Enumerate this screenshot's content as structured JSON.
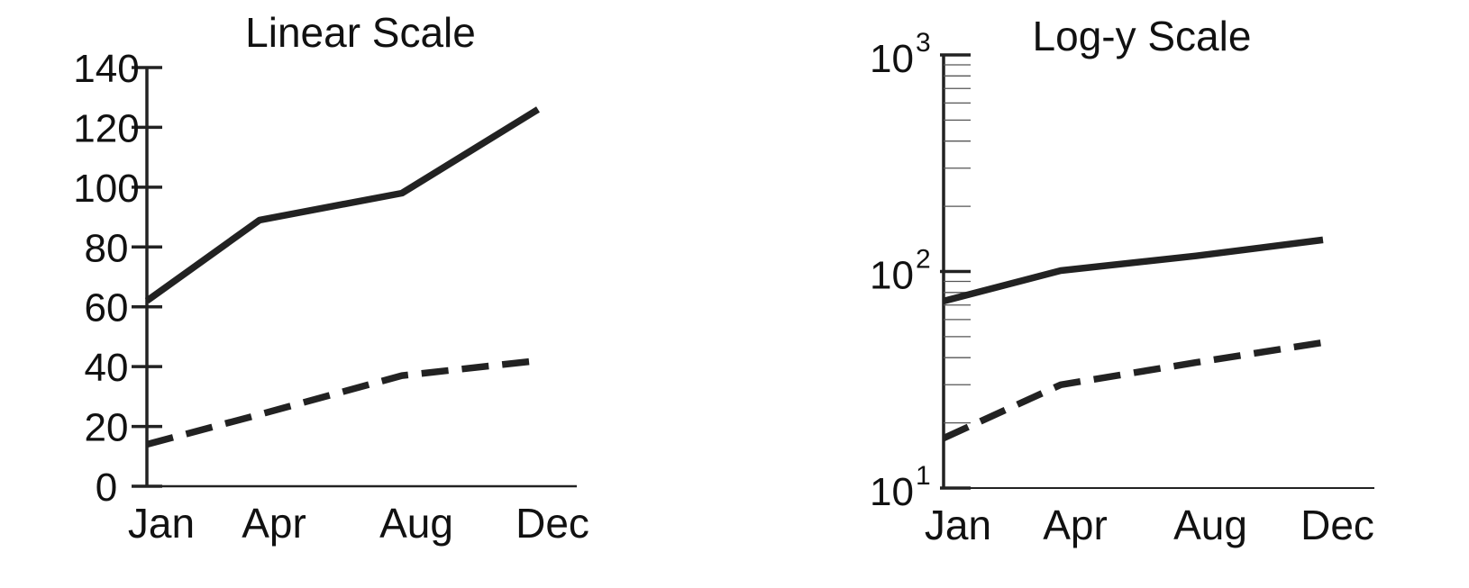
{
  "chart_data": [
    {
      "type": "line",
      "title": "Linear Scale",
      "yscale": "linear",
      "ylim": [
        0,
        140
      ],
      "yticks": [
        0,
        20,
        40,
        60,
        80,
        100,
        120,
        140
      ],
      "ytick_labels": [
        "0",
        "20",
        "40",
        "60",
        "80",
        "100",
        "120",
        "140"
      ],
      "categories": [
        "Jan",
        "Apr",
        "Aug",
        "Dec"
      ],
      "grid": false,
      "series": [
        {
          "style": "solid",
          "values": [
            62,
            89,
            98,
            126
          ]
        },
        {
          "style": "dashed",
          "values": [
            14,
            24,
            37,
            42
          ]
        }
      ]
    },
    {
      "type": "line",
      "title": "Log-y Scale",
      "yscale": "log",
      "ylim": [
        10,
        1000
      ],
      "yticks": [
        10,
        100,
        1000
      ],
      "ytick_labels": [
        {
          "base": "10",
          "exp": "1"
        },
        {
          "base": "10",
          "exp": "2"
        },
        {
          "base": "10",
          "exp": "3"
        }
      ],
      "categories": [
        "Jan",
        "Apr",
        "Aug",
        "Dec"
      ],
      "grid": false,
      "series": [
        {
          "style": "solid",
          "values": [
            73,
            101,
            118,
            140
          ]
        },
        {
          "style": "dashed",
          "values": [
            17,
            30,
            38,
            47
          ]
        }
      ]
    }
  ]
}
